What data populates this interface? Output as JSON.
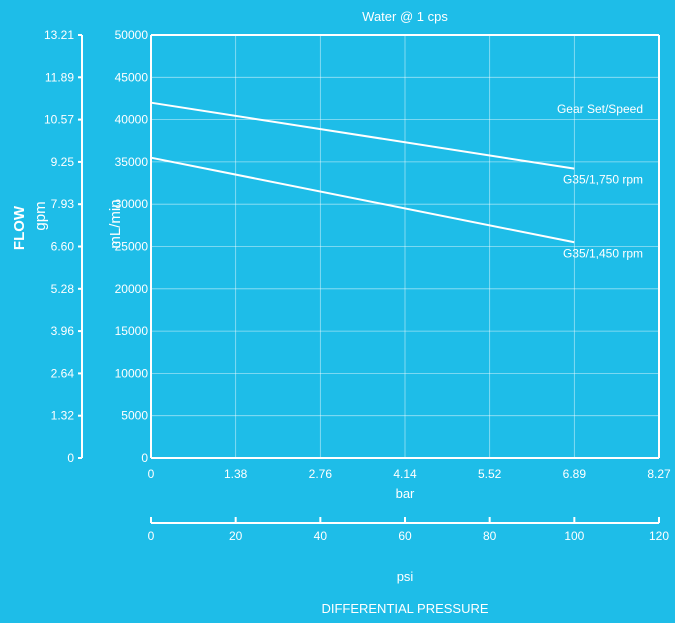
{
  "colors": {
    "background": "#1ebde8",
    "foreground": "#ffffff"
  },
  "chart_data": {
    "type": "line",
    "title": "Water @ 1 cps",
    "ylabel_main": "FLOW",
    "ylabel_gpm": "gpm",
    "ylabel_ml": "mL/min",
    "xlabel_bar": "bar",
    "xlabel_psi": "psi",
    "xlabel_main": "DIFFERENTIAL  PRESSURE",
    "legend_title": "Gear Set/Speed",
    "legend_placement": "right",
    "grid": true,
    "xlim_psi": [
      0,
      120
    ],
    "ylim_ml": [
      0,
      50000
    ],
    "gpm_ticks": [
      "0",
      "1.32",
      "2.64",
      "3.96",
      "5.28",
      "6.60",
      "7.93",
      "9.25",
      "10.57",
      "11.89",
      "13.21"
    ],
    "ml_ticks": [
      "0",
      "5000",
      "10000",
      "15000",
      "20000",
      "25000",
      "30000",
      "35000",
      "40000",
      "45000",
      "50000"
    ],
    "bar_ticks": [
      "0",
      "1.38",
      "2.76",
      "4.14",
      "5.52",
      "6.89",
      "8.27"
    ],
    "psi_ticks": [
      "0",
      "20",
      "40",
      "60",
      "80",
      "100",
      "120"
    ],
    "series": [
      {
        "name": "G35/1,750 rpm",
        "x": [
          0,
          100
        ],
        "y": [
          42000,
          34200
        ]
      },
      {
        "name": "G35/1,450 rpm",
        "x": [
          0,
          100
        ],
        "y": [
          35500,
          25500
        ]
      }
    ]
  }
}
